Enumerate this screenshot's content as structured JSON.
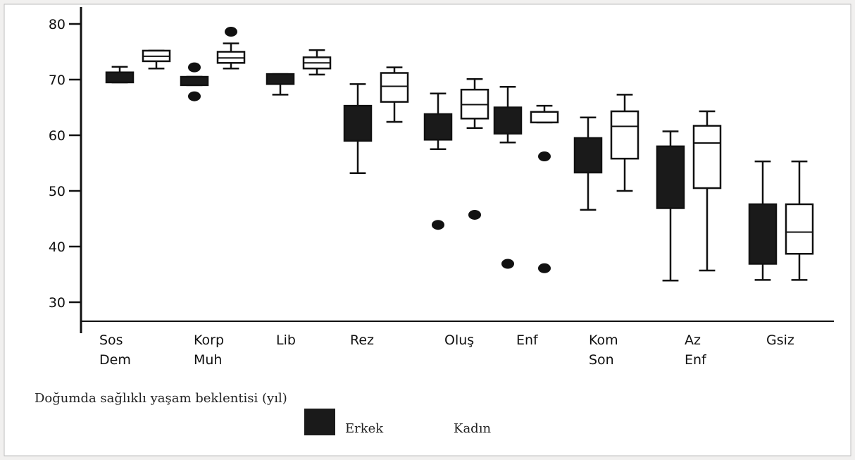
{
  "chart_data": {
    "type": "boxplot",
    "caption": "Doğumda sağlıklı yaşam beklentisi (yıl)",
    "y_ticks": [
      30,
      40,
      50,
      60,
      70,
      80
    ],
    "ylim": [
      27,
      81
    ],
    "categories": [
      {
        "label": [
          "Sos",
          "Dem"
        ]
      },
      {
        "label": [
          "Korp",
          "Muh"
        ]
      },
      {
        "label": [
          "Lib"
        ]
      },
      {
        "label": [
          "Rez"
        ]
      },
      {
        "label": [
          "Oluş"
        ]
      },
      {
        "label": [
          "Enf"
        ]
      },
      {
        "label": [
          "Kom",
          "Son"
        ]
      },
      {
        "label": [
          "Az",
          "Enf"
        ]
      },
      {
        "label": [
          "Gsiz"
        ]
      }
    ],
    "series": [
      {
        "name": "Erkek",
        "color": "#1a1a1a",
        "boxes": [
          {
            "min": 69.5,
            "q1": 69.5,
            "median": 69.5,
            "q3": 71.3,
            "max": 72.3,
            "outliers": []
          },
          {
            "min": 69.0,
            "q1": 69.0,
            "median": 69.0,
            "q3": 70.5,
            "max": 70.5,
            "outliers": [
              72.2,
              67.0
            ]
          },
          {
            "min": 67.3,
            "q1": 69.2,
            "median": 69.2,
            "q3": 71.0,
            "max": 71.0,
            "outliers": []
          },
          {
            "min": 53.2,
            "q1": 59.0,
            "median": 59.0,
            "q3": 65.3,
            "max": 69.2,
            "outliers": []
          },
          {
            "min": 57.5,
            "q1": 59.2,
            "median": 59.2,
            "q3": 63.8,
            "max": 67.5,
            "outliers": [
              43.9
            ]
          },
          {
            "min": 58.7,
            "q1": 60.3,
            "median": 60.3,
            "q3": 65.0,
            "max": 68.7,
            "outliers": [
              36.9
            ]
          },
          {
            "min": 46.6,
            "q1": 53.3,
            "median": 53.3,
            "q3": 59.5,
            "max": 63.2,
            "outliers": []
          },
          {
            "min": 33.9,
            "q1": 46.9,
            "median": 46.9,
            "q3": 58.0,
            "max": 60.7,
            "outliers": []
          },
          {
            "min": 34.0,
            "q1": 36.9,
            "median": 36.9,
            "q3": 47.6,
            "max": 55.3,
            "outliers": []
          }
        ]
      },
      {
        "name": "Kadın",
        "color": "#ffffff",
        "boxes": [
          {
            "min": 72.0,
            "q1": 73.3,
            "median": 74.2,
            "q3": 75.2,
            "max": 75.2,
            "outliers": []
          },
          {
            "min": 72.0,
            "q1": 73.0,
            "median": 73.9,
            "q3": 75.0,
            "max": 76.5,
            "outliers": [
              78.6
            ]
          },
          {
            "min": 70.9,
            "q1": 72.0,
            "median": 73.0,
            "q3": 74.0,
            "max": 75.3,
            "outliers": []
          },
          {
            "min": 62.4,
            "q1": 66.0,
            "median": 68.8,
            "q3": 71.2,
            "max": 72.2,
            "outliers": []
          },
          {
            "min": 61.3,
            "q1": 63.0,
            "median": 65.5,
            "q3": 68.2,
            "max": 70.1,
            "outliers": [
              45.7
            ]
          },
          {
            "min": 62.3,
            "q1": 62.3,
            "median": 62.3,
            "q3": 64.2,
            "max": 65.3,
            "outliers": [
              56.2,
              36.1
            ]
          },
          {
            "min": 50.0,
            "q1": 55.8,
            "median": 61.6,
            "q3": 64.3,
            "max": 67.3,
            "outliers": []
          },
          {
            "min": 35.7,
            "q1": 50.5,
            "median": 58.6,
            "q3": 61.7,
            "max": 64.3,
            "outliers": []
          },
          {
            "min": 34.0,
            "q1": 38.7,
            "median": 42.6,
            "q3": 47.6,
            "max": 55.3,
            "outliers": []
          }
        ]
      }
    ]
  }
}
